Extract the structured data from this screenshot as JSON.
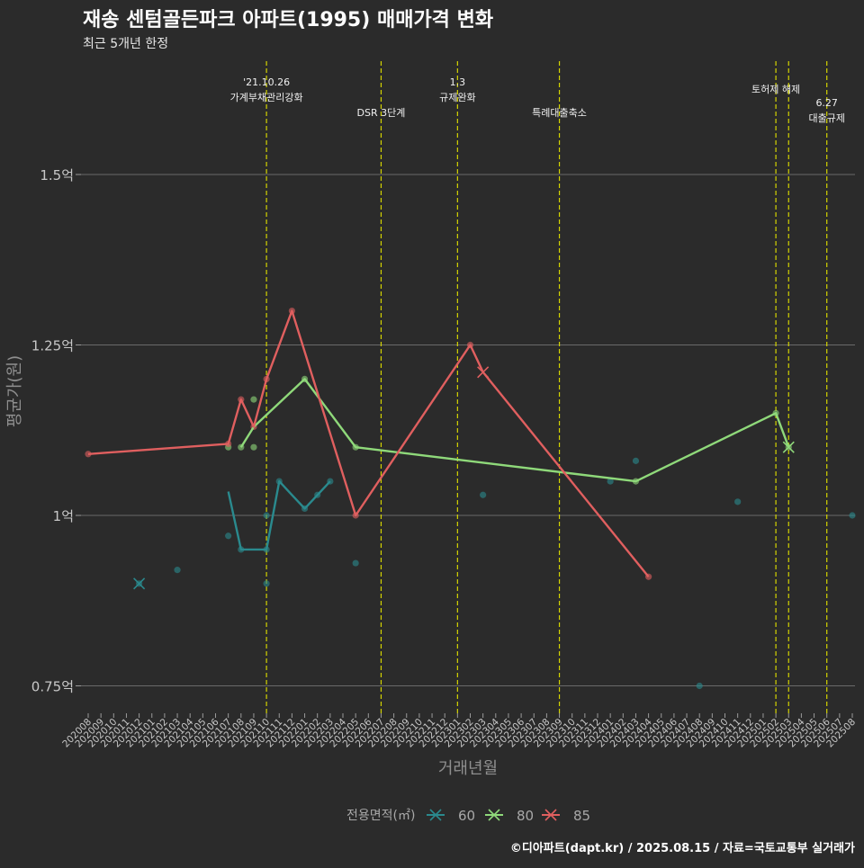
{
  "title": "재송 센텀골든파크 아파트(1995) 매매가격 변화",
  "subtitle": "최근 5개년 한정",
  "caption": "©디아파트(dapt.kr) / 2025.08.15 / 자료=국토교통부 실거래가",
  "chart_data": {
    "type": "line",
    "xlabel": "거래년월",
    "ylabel": "평균가(원)",
    "ylim": [
      0.7,
      1.6
    ],
    "yticks": [
      {
        "value": 0.75,
        "label": "0.75억"
      },
      {
        "value": 1.0,
        "label": "1억"
      },
      {
        "value": 1.25,
        "label": "1.25억"
      },
      {
        "value": 1.5,
        "label": "1.5억"
      }
    ],
    "x_categories": [
      "202008",
      "202009",
      "202010",
      "202011",
      "202012",
      "202101",
      "202102",
      "202103",
      "202104",
      "202105",
      "202106",
      "202107",
      "202108",
      "202109",
      "202110",
      "202111",
      "202112",
      "202201",
      "202202",
      "202203",
      "202204",
      "202205",
      "202206",
      "202207",
      "202208",
      "202209",
      "202210",
      "202211",
      "202212",
      "202301",
      "202302",
      "202303",
      "202304",
      "202305",
      "202306",
      "202307",
      "202308",
      "202309",
      "202310",
      "202311",
      "202312",
      "202401",
      "202402",
      "202403",
      "202404",
      "202405",
      "202406",
      "202407",
      "202408",
      "202409",
      "202410",
      "202411",
      "202412",
      "202501",
      "202502",
      "202503",
      "202504",
      "202505",
      "202506",
      "202507",
      "202508"
    ],
    "grid": "horizontal major",
    "legend": {
      "title": "전용면적(㎡)",
      "position": "bottom"
    },
    "series": [
      {
        "name": "60",
        "color": "#2a8a8e",
        "line": [
          {
            "x": "202107",
            "y": 1.035
          },
          {
            "x": "202108",
            "y": 0.95
          },
          {
            "x": "202109",
            "y": 0.95
          },
          {
            "x": "202110",
            "y": 0.95
          },
          {
            "x": "202111",
            "y": 1.05
          },
          {
            "x": "202112",
            "y": 1.03
          },
          {
            "x": "202201",
            "y": 1.01
          },
          {
            "x": "202202",
            "y": 1.03
          },
          {
            "x": "202203",
            "y": 1.05
          }
        ],
        "points": [
          {
            "x": "202012",
            "y": 0.9
          },
          {
            "x": "202103",
            "y": 0.92
          },
          {
            "x": "202107",
            "y": 0.97
          },
          {
            "x": "202108",
            "y": 0.95
          },
          {
            "x": "202110",
            "y": 0.95
          },
          {
            "x": "202110",
            "y": 1.0
          },
          {
            "x": "202110",
            "y": 0.9
          },
          {
            "x": "202111",
            "y": 1.05
          },
          {
            "x": "202201",
            "y": 1.01
          },
          {
            "x": "202202",
            "y": 1.03
          },
          {
            "x": "202203",
            "y": 1.05
          },
          {
            "x": "202205",
            "y": 0.93
          },
          {
            "x": "202303",
            "y": 1.03
          },
          {
            "x": "202401",
            "y": 1.05
          },
          {
            "x": "202403",
            "y": 1.08
          },
          {
            "x": "202408",
            "y": 0.75
          },
          {
            "x": "202411",
            "y": 1.02
          },
          {
            "x": "202508",
            "y": 1.0
          }
        ],
        "cross": [
          {
            "x": "202012",
            "y": 0.9
          }
        ]
      },
      {
        "name": "80",
        "color": "#8fd97a",
        "line": [
          {
            "x": "202108",
            "y": 1.1
          },
          {
            "x": "202109",
            "y": 1.13
          },
          {
            "x": "202201",
            "y": 1.2
          },
          {
            "x": "202205",
            "y": 1.1
          },
          {
            "x": "202403",
            "y": 1.05
          },
          {
            "x": "202502",
            "y": 1.15
          },
          {
            "x": "202503",
            "y": 1.1
          }
        ],
        "points": [
          {
            "x": "202107",
            "y": 1.1
          },
          {
            "x": "202108",
            "y": 1.1
          },
          {
            "x": "202109",
            "y": 1.17
          },
          {
            "x": "202109",
            "y": 1.1
          },
          {
            "x": "202201",
            "y": 1.2
          },
          {
            "x": "202205",
            "y": 1.1
          },
          {
            "x": "202403",
            "y": 1.05
          },
          {
            "x": "202502",
            "y": 1.15
          },
          {
            "x": "202503",
            "y": 1.1
          }
        ],
        "cross": [
          {
            "x": "202503",
            "y": 1.1
          }
        ]
      },
      {
        "name": "85",
        "color": "#e05f5f",
        "line": [
          {
            "x": "202008",
            "y": 1.09
          },
          {
            "x": "202107",
            "y": 1.105
          },
          {
            "x": "202108",
            "y": 1.17
          },
          {
            "x": "202109",
            "y": 1.13
          },
          {
            "x": "202110",
            "y": 1.2
          },
          {
            "x": "202112",
            "y": 1.3
          },
          {
            "x": "202205",
            "y": 1.0
          },
          {
            "x": "202302",
            "y": 1.25
          },
          {
            "x": "202303",
            "y": 1.21
          },
          {
            "x": "202404",
            "y": 0.91
          }
        ],
        "points": [
          {
            "x": "202008",
            "y": 1.09
          },
          {
            "x": "202107",
            "y": 1.105
          },
          {
            "x": "202108",
            "y": 1.17
          },
          {
            "x": "202109",
            "y": 1.13
          },
          {
            "x": "202110",
            "y": 1.2
          },
          {
            "x": "202112",
            "y": 1.3
          },
          {
            "x": "202205",
            "y": 1.0
          },
          {
            "x": "202302",
            "y": 1.25
          },
          {
            "x": "202404",
            "y": 0.91
          }
        ],
        "cross": [
          {
            "x": "202303",
            "y": 1.21
          }
        ]
      }
    ],
    "annotations": [
      {
        "x": "202110",
        "lines": [
          "'21.10.26",
          "가계부채관리강화"
        ],
        "level": "top"
      },
      {
        "x": "202207",
        "lines": [
          "DSR 3단계"
        ],
        "level": "low"
      },
      {
        "x": "202301",
        "lines": [
          "1.3",
          "규제완화"
        ],
        "level": "top"
      },
      {
        "x": "202309",
        "lines": [
          "특례대출축소"
        ],
        "level": "low"
      },
      {
        "x": "202502",
        "lines": [
          "토허제 해제"
        ],
        "level": "mid"
      },
      {
        "x": "202503",
        "lines": [],
        "level": "none"
      },
      {
        "x": "202506",
        "lines": [
          "6.27",
          "대출규제"
        ],
        "level": "low2"
      }
    ]
  }
}
